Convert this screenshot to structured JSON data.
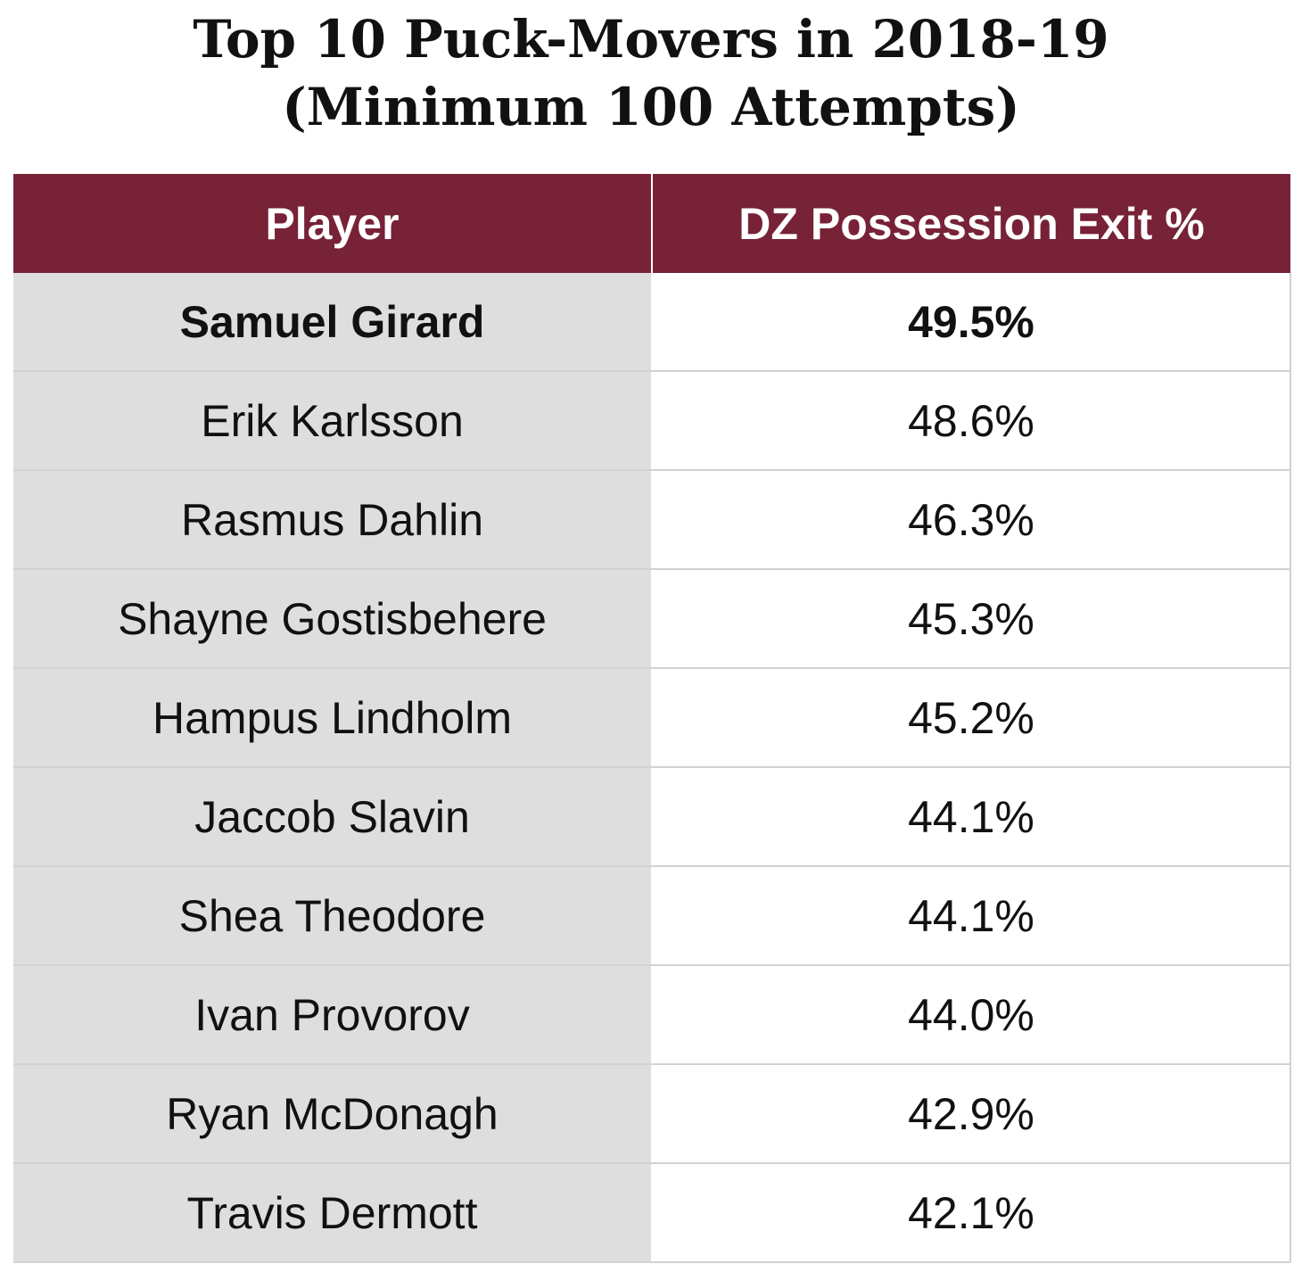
{
  "chart_data": {
    "type": "table",
    "title": "Top 10 Puck-Movers in 2018-19",
    "subtitle": "(Minimum 100 Attempts)",
    "columns": [
      "Player",
      "DZ Possession Exit %"
    ],
    "rows": [
      {
        "player": "Samuel Girard",
        "value": "49.5%",
        "highlight": true
      },
      {
        "player": "Erik Karlsson",
        "value": "48.6%",
        "highlight": false
      },
      {
        "player": "Rasmus Dahlin",
        "value": "46.3%",
        "highlight": false
      },
      {
        "player": "Shayne Gostisbehere",
        "value": "45.3%",
        "highlight": false
      },
      {
        "player": "Hampus Lindholm",
        "value": "45.2%",
        "highlight": false
      },
      {
        "player": "Jaccob Slavin",
        "value": "44.1%",
        "highlight": false
      },
      {
        "player": "Shea Theodore",
        "value": "44.1%",
        "highlight": false
      },
      {
        "player": "Ivan Provorov",
        "value": "44.0%",
        "highlight": false
      },
      {
        "player": "Ryan McDonagh",
        "value": "42.9%",
        "highlight": false
      },
      {
        "player": "Travis Dermott",
        "value": "42.1%",
        "highlight": false
      }
    ]
  },
  "colors": {
    "header_background": "#772236",
    "header_text": "#ffffff",
    "player_column_background": "#dedede",
    "value_column_background": "#ffffff"
  }
}
